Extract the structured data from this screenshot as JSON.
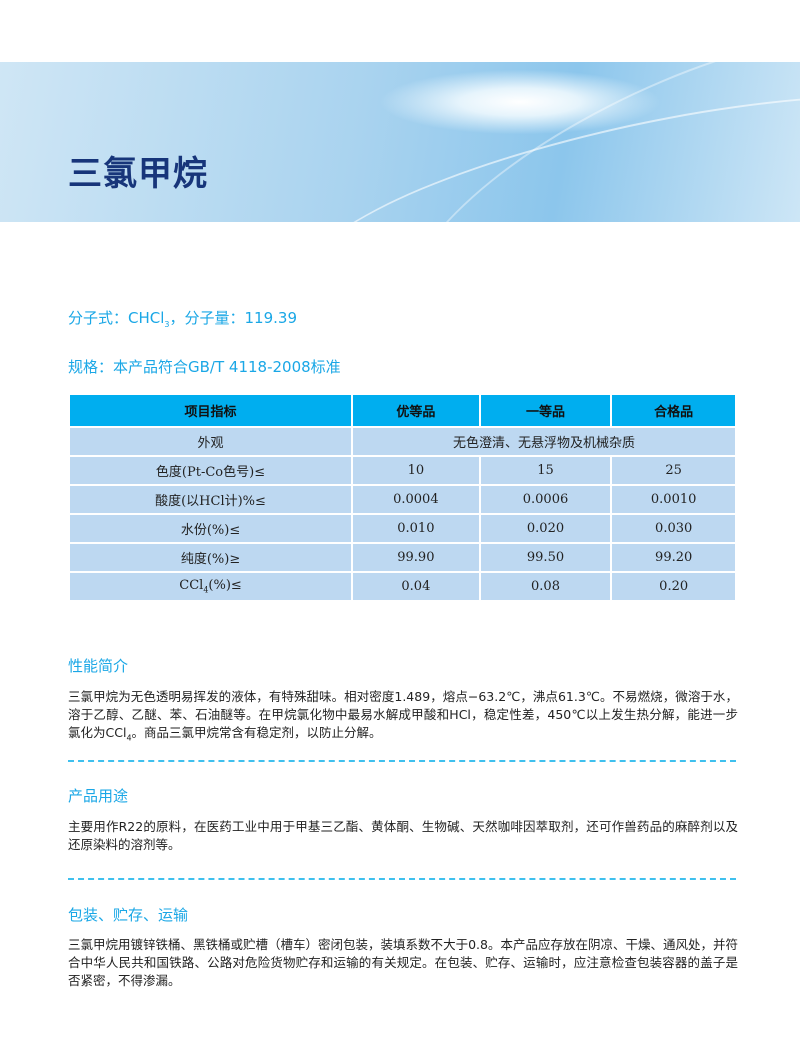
{
  "header": {
    "title": "三氯甲烷"
  },
  "info": {
    "formula_prefix": "分子式：CHCl",
    "formula_sub": "3",
    "formula_suffix": "，分子量：119.39",
    "spec": "规格：本产品符合GB/T 4118-2008标准"
  },
  "table": {
    "headers": [
      "项目指标",
      "优等品",
      "一等品",
      "合格品"
    ],
    "appearance": {
      "label": "外观",
      "value": "无色澄清、无悬浮物及机械杂质"
    },
    "rows": [
      {
        "label": "色度(Pt-Co色号)≤",
        "values": [
          "10",
          "15",
          "25"
        ]
      },
      {
        "label": "酸度(以HCl计)%≤",
        "values": [
          "0.0004",
          "0.0006",
          "0.0010"
        ]
      },
      {
        "label": "水份(%)≤",
        "values": [
          "0.010",
          "0.020",
          "0.030"
        ]
      },
      {
        "label": "纯度(%)≥",
        "values": [
          "99.90",
          "99.50",
          "99.20"
        ]
      }
    ],
    "ccl4": {
      "label_prefix": "CCl",
      "label_sub": "4",
      "label_suffix": "(%)≤",
      "values": [
        "0.04",
        "0.08",
        "0.20"
      ]
    }
  },
  "sections": [
    {
      "title": "性能简介",
      "text_a": "三氯甲烷为无色透明易挥发的液体，有特殊甜味。相对密度1.489，熔点−63.2℃，沸点61.3℃。不易燃烧，微溶于水，溶于乙醇、乙醚、苯、石油醚等。在甲烷氯化物中最易水解成甲酸和HCl，稳定性差，450℃以上发生热分解，能进一步氯化为CCl",
      "text_sub": "4",
      "text_b": "。商品三氯甲烷常含有稳定剂，以防止分解。"
    },
    {
      "title": "产品用途",
      "text": "主要用作R22的原料，在医药工业中用于甲基三乙酯、黄体酮、生物碱、天然咖啡因萃取剂，还可作兽药品的麻醉剂以及还原染料的溶剂等。"
    },
    {
      "title": "包装、贮存、运输",
      "text": "三氯甲烷用镀锌铁桶、黑铁桶或贮槽（槽车）密闭包装，装填系数不大于0.8。本产品应存放在阴凉、干燥、通风处，并符合中华人民共和国铁路、公路对危险货物贮存和运输的有关规定。在包装、贮存、运输时，应注意检查包装容器的盖子是否紧密，不得渗漏。"
    }
  ]
}
